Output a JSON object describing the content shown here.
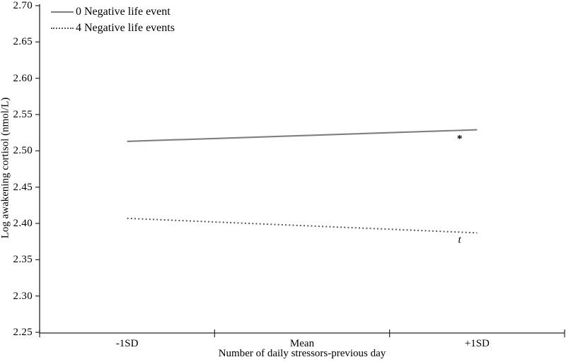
{
  "figure": {
    "background": "#ffffff",
    "axis_color": "#262626",
    "text_color": "#000000"
  },
  "legend": {
    "position": "top-left",
    "items": [
      {
        "label": "0 Negative life event",
        "style": "solid",
        "color": "#7f7f7f"
      },
      {
        "label": "4 Negative life events",
        "style": "dotted",
        "color": "#595959"
      }
    ]
  },
  "chart_data": {
    "type": "line",
    "categories": [
      "-1SD",
      "Mean",
      "+1SD"
    ],
    "series": [
      {
        "name": "0 Negative life event",
        "style": "solid",
        "color": "#7f7f7f",
        "values": [
          2.513,
          2.521,
          2.529
        ]
      },
      {
        "name": "4 Negative life events",
        "style": "dotted",
        "color": "#595959",
        "values": [
          2.407,
          2.397,
          2.387
        ]
      }
    ],
    "title": "",
    "xlabel": "Number of daily stressors-previous day",
    "ylabel": "Log awakening cortisol (nmol/L)",
    "ylim": [
      2.25,
      2.7
    ],
    "y_tick_step": 0.05,
    "y_tick_labels": [
      "2.25",
      "2.30",
      "2.35",
      "2.40",
      "2.45",
      "2.50",
      "2.55",
      "2.60",
      "2.65",
      "2.70"
    ],
    "grid": false,
    "legend_position": "top-left",
    "annotations": [
      {
        "text": "*",
        "x": 1.9,
        "y": 2.52,
        "italic": false
      },
      {
        "text": "t",
        "x": 1.9,
        "y": 2.377,
        "italic": true
      }
    ]
  }
}
